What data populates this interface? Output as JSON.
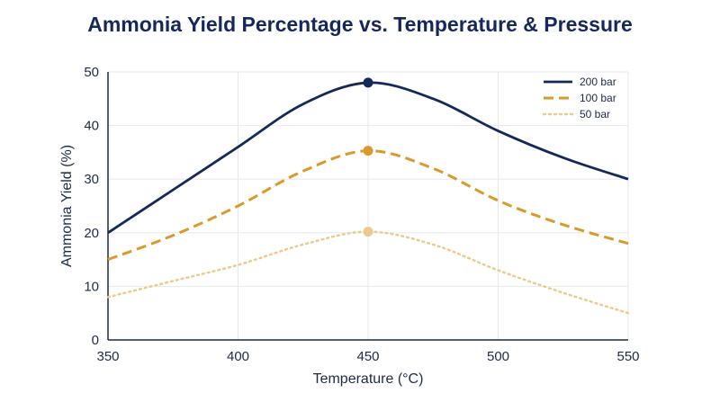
{
  "chart_data": {
    "type": "line",
    "title": "Ammonia Yield Percentage vs. Temperature & Pressure",
    "xlabel": "Temperature (°C)",
    "ylabel": "Ammonia Yield (%)",
    "xlim": [
      350,
      550
    ],
    "ylim": [
      0,
      50
    ],
    "xticks": [
      350,
      400,
      450,
      500,
      550
    ],
    "yticks": [
      0,
      10,
      20,
      30,
      40,
      50
    ],
    "grid": true,
    "legend": "top-right",
    "series": [
      {
        "name": "200 bar",
        "color": "#14285a",
        "style": "solid",
        "x": [
          350,
          375,
          400,
          425,
          450,
          475,
          500,
          525,
          550
        ],
        "y": [
          20,
          28,
          36,
          44,
          48,
          45,
          39,
          34,
          30
        ],
        "marker_at": [
          450,
          48
        ]
      },
      {
        "name": "100 bar",
        "color": "#d99a2b",
        "style": "dashed",
        "x": [
          350,
          375,
          400,
          425,
          450,
          475,
          500,
          525,
          550
        ],
        "y": [
          15,
          19.5,
          25,
          31.5,
          35.3,
          32,
          26,
          21.5,
          18
        ],
        "marker_at": [
          450,
          35.3
        ]
      },
      {
        "name": "50 bar",
        "color": "#edc98a",
        "style": "dotted",
        "x": [
          350,
          375,
          400,
          425,
          450,
          475,
          500,
          525,
          550
        ],
        "y": [
          8,
          11,
          14,
          17.8,
          20.2,
          17.8,
          13,
          8.8,
          5
        ],
        "marker_at": [
          450,
          20.2
        ]
      }
    ]
  }
}
